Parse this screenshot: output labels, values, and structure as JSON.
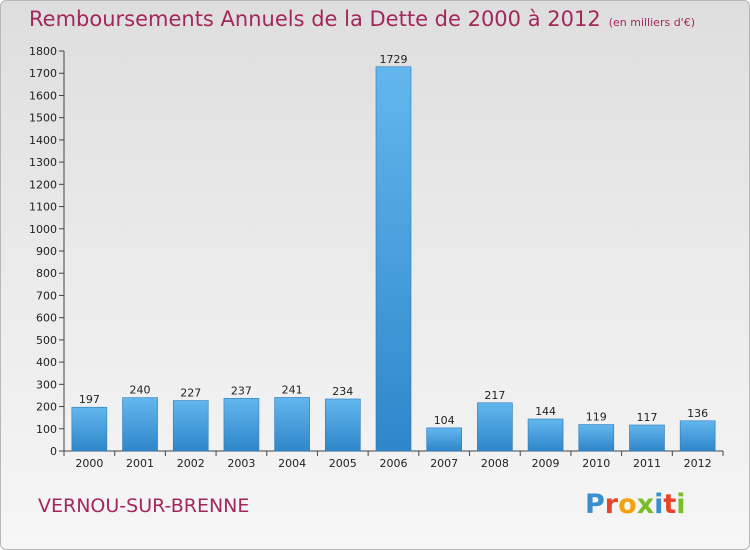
{
  "header": {
    "title": "Remboursements Annuels de la Dette de 2000 à 2012",
    "unit": "(en milliers d'€)"
  },
  "footer": {
    "city": "VERNOU-SUR-BRENNE",
    "brand_letters": [
      "P",
      "r",
      "o",
      "x",
      "i",
      "t",
      "i"
    ]
  },
  "colors": {
    "title": "#a3285a",
    "bar_light": "#63b7ee",
    "bar_dark": "#2f86c9",
    "brand": [
      "#3a8fd0",
      "#e8442a",
      "#f2a20c",
      "#7abd2a",
      "#3a8fd0",
      "#e8442a",
      "#7abd2a"
    ]
  },
  "chart_data": {
    "type": "bar",
    "categories": [
      "2000",
      "2001",
      "2002",
      "2003",
      "2004",
      "2005",
      "2006",
      "2007",
      "2008",
      "2009",
      "2010",
      "2011",
      "2012"
    ],
    "values": [
      197,
      240,
      227,
      237,
      241,
      234,
      1729,
      104,
      217,
      144,
      119,
      117,
      136
    ],
    "data_labels": [
      "197",
      "240",
      "227",
      "237",
      "241",
      "234",
      "1729",
      "104",
      "217",
      "144",
      "119",
      "117",
      "136"
    ],
    "y_ticks": [
      "0",
      "100",
      "200",
      "300",
      "400",
      "500",
      "600",
      "700",
      "800",
      "900",
      "1000",
      "1100",
      "1200",
      "1300",
      "1400",
      "1500",
      "1600",
      "1700",
      "1800"
    ],
    "ylim": [
      0,
      1800
    ],
    "grid": false,
    "xlabel": "",
    "ylabel": ""
  }
}
